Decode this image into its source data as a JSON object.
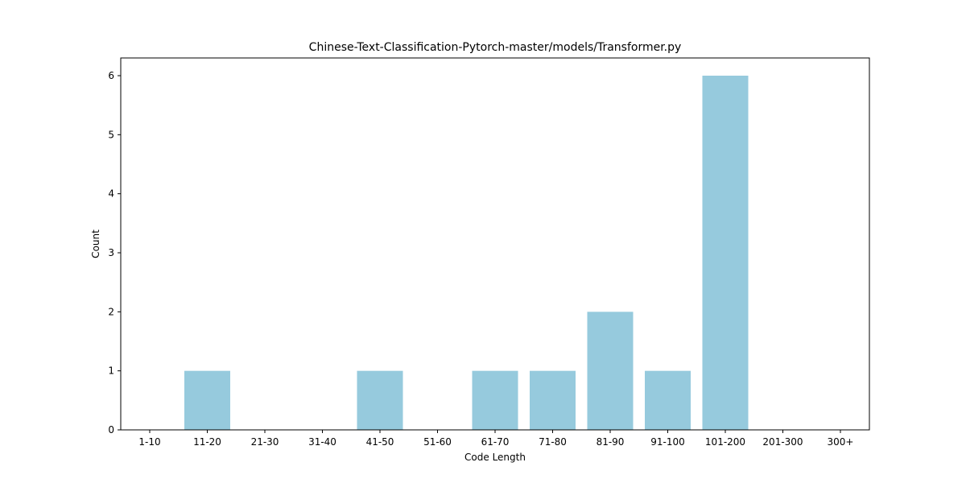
{
  "chart_data": {
    "type": "bar",
    "title": "Chinese-Text-Classification-Pytorch-master/models/Transformer.py",
    "xlabel": "Code Length",
    "ylabel": "Count",
    "categories": [
      "1-10",
      "11-20",
      "21-30",
      "31-40",
      "41-50",
      "51-60",
      "61-70",
      "71-80",
      "81-90",
      "91-100",
      "101-200",
      "201-300",
      "300+"
    ],
    "values": [
      0,
      1,
      0,
      0,
      1,
      0,
      1,
      1,
      2,
      1,
      6,
      0,
      0
    ],
    "ylim": [
      0,
      6.3
    ],
    "yticks": [
      "0",
      "1",
      "2",
      "3",
      "4",
      "5",
      "6"
    ],
    "bar_color": "#96cadd",
    "grid": false,
    "legend": "none"
  }
}
